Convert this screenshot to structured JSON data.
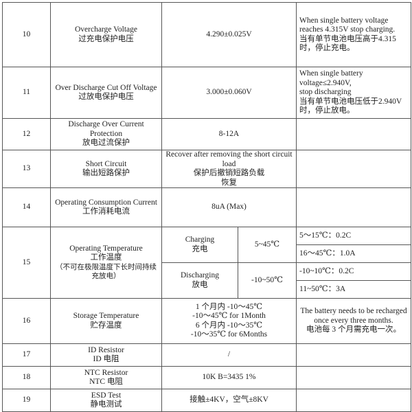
{
  "rows": [
    {
      "no": "10",
      "item": [
        "Overcharge Voltage",
        "过充电保护电压"
      ],
      "value": [
        "4.290±0.025V"
      ],
      "note": [
        "When single battery voltage reaches 4.315V stop charging.",
        "当有单节电池电压高于4.315 时，停止充电。"
      ]
    },
    {
      "no": "11",
      "item": [
        "Over Discharge Cut Off Voltage",
        "过放电保护电压"
      ],
      "value": [
        "3.000±0.060V"
      ],
      "note": [
        "When single battery voltage≤2.940V,",
        "stop discharging",
        "当有单节电池电压低于2.940V 时，停止放电。"
      ]
    },
    {
      "no": "12",
      "item": [
        "Discharge Over Current Protection",
        "放电过流保护"
      ],
      "value": [
        "8-12A"
      ],
      "note": []
    },
    {
      "no": "13",
      "item": [
        "Short Circuit",
        "输出短路保护"
      ],
      "value": [
        "Recover after removing the short circuit load",
        "保护后撤销短路负载",
        "恢复"
      ],
      "note": []
    },
    {
      "no": "14",
      "item": [
        "Operating Consumption Current",
        "工作消耗电流"
      ],
      "value": [
        "8uA (Max)"
      ],
      "note": []
    },
    {
      "no": "15",
      "item": [
        "Operating Temperature",
        "工作温度"
      ],
      "item_note": "（不可在极限温度下长时间持续充放电）",
      "charging": {
        "label": [
          "Charging",
          "充电"
        ],
        "range": "5~45℃",
        "notes": [
          "5～15℃：0.2C",
          "16～45℃：1.0A"
        ]
      },
      "discharging": {
        "label": [
          "Discharging",
          "放电"
        ],
        "range": "-10~50℃",
        "notes": [
          "-10~10℃：0.2C",
          "11~50℃：3A"
        ]
      }
    },
    {
      "no": "16",
      "item": [
        "Storage Temperature",
        "贮存温度"
      ],
      "value": [
        "1 个月内 -10～45℃",
        "-10～45℃ for 1Month",
        "6 个月内 -10～35℃",
        "-10～35℃ for 6Months"
      ],
      "note": [
        "The battery needs to be recharged once every three months.",
        "电池每 3 个月需充电一次。"
      ]
    },
    {
      "no": "17",
      "item": [
        "ID Resistor",
        "ID 电阻"
      ],
      "value": [
        "/"
      ],
      "note": []
    },
    {
      "no": "18",
      "item": [
        "NTC Resistor",
        "NTC 电阻"
      ],
      "value": [
        "10K B=3435 1%"
      ],
      "note": []
    },
    {
      "no": "19",
      "item": [
        "ESD Test",
        "静电测试"
      ],
      "value": [
        "接触±4KV，空气±8KV"
      ],
      "note": []
    }
  ]
}
